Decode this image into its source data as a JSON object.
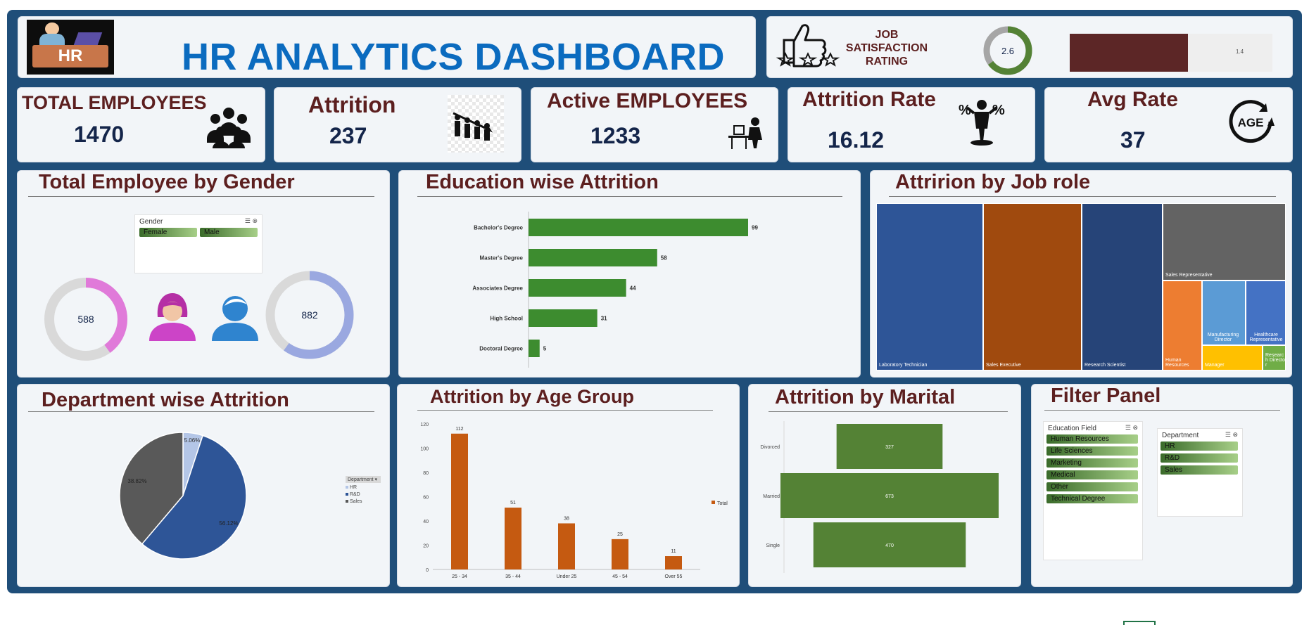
{
  "header": {
    "title": "HR ANALYTICS DASHBOARD",
    "logo_text": "HR"
  },
  "job_satisfaction": {
    "label_line1": "JOB",
    "label_line2": "SATISFACTION",
    "label_line3": "RATING",
    "rating": "2.6",
    "rating_value": 2.6,
    "rating_max": 4,
    "bar_value": 1.4,
    "bar_value_label": "1.4"
  },
  "kpis": {
    "total_employees": {
      "label": "TOTAL EMPLOYEES",
      "value": "1470"
    },
    "attrition": {
      "label": "Attrition",
      "value": "237"
    },
    "active_employees": {
      "label": "Active EMPLOYEES",
      "value": "1233"
    },
    "attrition_rate": {
      "label": "Attrition Rate",
      "value": "16.12"
    },
    "avg_age": {
      "label": "Avg Rate",
      "value": "37",
      "icon_text": "AGE"
    }
  },
  "gender": {
    "title": "Total Employee by Gender",
    "slicer_header": "Gender",
    "options": [
      "Female",
      "Male"
    ],
    "female": {
      "value": "588",
      "count": 588
    },
    "male": {
      "value": "882",
      "count": 882
    },
    "total": 1470
  },
  "job_role": {
    "title": "Attririon by Job role",
    "cells": [
      "Laboratory Technician",
      "Sales Executive",
      "Research Scientist",
      "Sales Representative",
      "Human Resources",
      "Manufacturing Director",
      "Healthcare Representative",
      "Manager",
      "Research Director"
    ],
    "colors": [
      "#2e5597",
      "#a04a0e",
      "#264478",
      "#636363",
      "#ed7d31",
      "#5b9bd5",
      "#4472c4",
      "#ffc000",
      "#70ad47"
    ]
  },
  "department": {
    "title": "Department wise Attrition",
    "legend_header": "Department",
    "legend": [
      "HR",
      "R&D",
      "Sales"
    ],
    "legend_colors": [
      "#b4c6e7",
      "#2e5597",
      "#595959"
    ],
    "labels": [
      "5.06%",
      "56.12%",
      "38.82%"
    ],
    "percent": [
      5.06,
      56.12,
      38.82
    ]
  },
  "filter_panel": {
    "title": "Filter Panel",
    "education_header": "Education Field",
    "education_fields": [
      "Human Resources",
      "Life Sciences",
      "Marketing",
      "Medical",
      "Other",
      "Technical Degree"
    ],
    "department_header": "Department",
    "departments": [
      "HR",
      "R&D",
      "Sales"
    ]
  },
  "chart_data": [
    {
      "type": "bar",
      "title": "Education wise Attrition",
      "orientation": "horizontal",
      "categories": [
        "Bachelor's Degree",
        "Master's Degree",
        "Associates Degree",
        "High School",
        "Doctoral Degree"
      ],
      "values": [
        99,
        58,
        44,
        31,
        5
      ],
      "color": "#3d8c2f"
    },
    {
      "type": "bar",
      "title": "Attrition by Age Group",
      "categories": [
        "25 - 34",
        "35 - 44",
        "Under 25",
        "45 - 54",
        "Over 55"
      ],
      "values": [
        112,
        51,
        38,
        25,
        11
      ],
      "legend": "Total",
      "ylim": [
        0,
        120
      ],
      "yticks": [
        0,
        20,
        40,
        60,
        80,
        100,
        120
      ],
      "color": "#c55a11"
    },
    {
      "type": "bar",
      "title": "Attrition by Marital",
      "orientation": "horizontal",
      "categories": [
        "Divorced",
        "Married",
        "Single"
      ],
      "values": [
        327,
        673,
        470
      ],
      "color": "#548235"
    }
  ]
}
